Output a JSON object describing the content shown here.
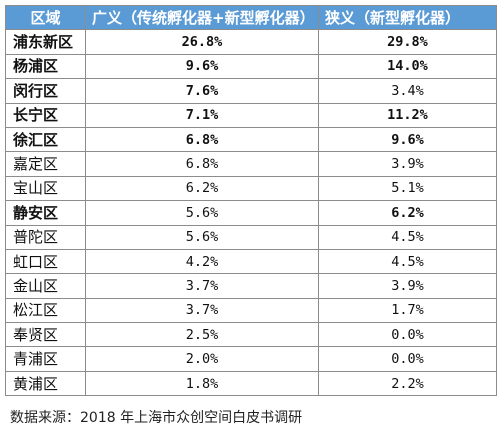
{
  "table": {
    "headers": [
      "区域",
      "广义（传统孵化器+新型孵化器）",
      "狭义（新型孵化器）"
    ],
    "rows": [
      {
        "district": "浦东新区",
        "broad": "26.8%",
        "narrow": "29.8%",
        "bold_district": true,
        "bold_broad": true,
        "bold_narrow": true
      },
      {
        "district": "杨浦区",
        "broad": "9.6%",
        "narrow": "14.0%",
        "bold_district": true,
        "bold_broad": true,
        "bold_narrow": true
      },
      {
        "district": "闵行区",
        "broad": "7.6%",
        "narrow": "3.4%",
        "bold_district": true,
        "bold_broad": true,
        "bold_narrow": false
      },
      {
        "district": "长宁区",
        "broad": "7.1%",
        "narrow": "11.2%",
        "bold_district": true,
        "bold_broad": true,
        "bold_narrow": true
      },
      {
        "district": "徐汇区",
        "broad": "6.8%",
        "narrow": "9.6%",
        "bold_district": true,
        "bold_broad": true,
        "bold_narrow": true
      },
      {
        "district": "嘉定区",
        "broad": "6.8%",
        "narrow": "3.9%",
        "bold_district": false,
        "bold_broad": false,
        "bold_narrow": false
      },
      {
        "district": "宝山区",
        "broad": "6.2%",
        "narrow": "5.1%",
        "bold_district": false,
        "bold_broad": false,
        "bold_narrow": false
      },
      {
        "district": "静安区",
        "broad": "5.6%",
        "narrow": "6.2%",
        "bold_district": true,
        "bold_broad": false,
        "bold_narrow": true
      },
      {
        "district": "普陀区",
        "broad": "5.6%",
        "narrow": "4.5%",
        "bold_district": false,
        "bold_broad": false,
        "bold_narrow": false
      },
      {
        "district": "虹口区",
        "broad": "4.2%",
        "narrow": "4.5%",
        "bold_district": false,
        "bold_broad": false,
        "bold_narrow": false
      },
      {
        "district": "金山区",
        "broad": "3.7%",
        "narrow": "3.9%",
        "bold_district": false,
        "bold_broad": false,
        "bold_narrow": false
      },
      {
        "district": "松江区",
        "broad": "3.7%",
        "narrow": "1.7%",
        "bold_district": false,
        "bold_broad": false,
        "bold_narrow": false
      },
      {
        "district": "奉贤区",
        "broad": "2.5%",
        "narrow": "0.0%",
        "bold_district": false,
        "bold_broad": false,
        "bold_narrow": false
      },
      {
        "district": "青浦区",
        "broad": "2.0%",
        "narrow": "0.0%",
        "bold_district": false,
        "bold_broad": false,
        "bold_narrow": false
      },
      {
        "district": "黄浦区",
        "broad": "1.8%",
        "narrow": "2.2%",
        "bold_district": false,
        "bold_broad": false,
        "bold_narrow": false
      }
    ]
  },
  "source": "数据来源：2018 年上海市众创空间白皮书调研",
  "colors": {
    "header_background": "#5b9bd5",
    "header_text": "#ffffff",
    "grid_border": "#8c8c8c"
  }
}
